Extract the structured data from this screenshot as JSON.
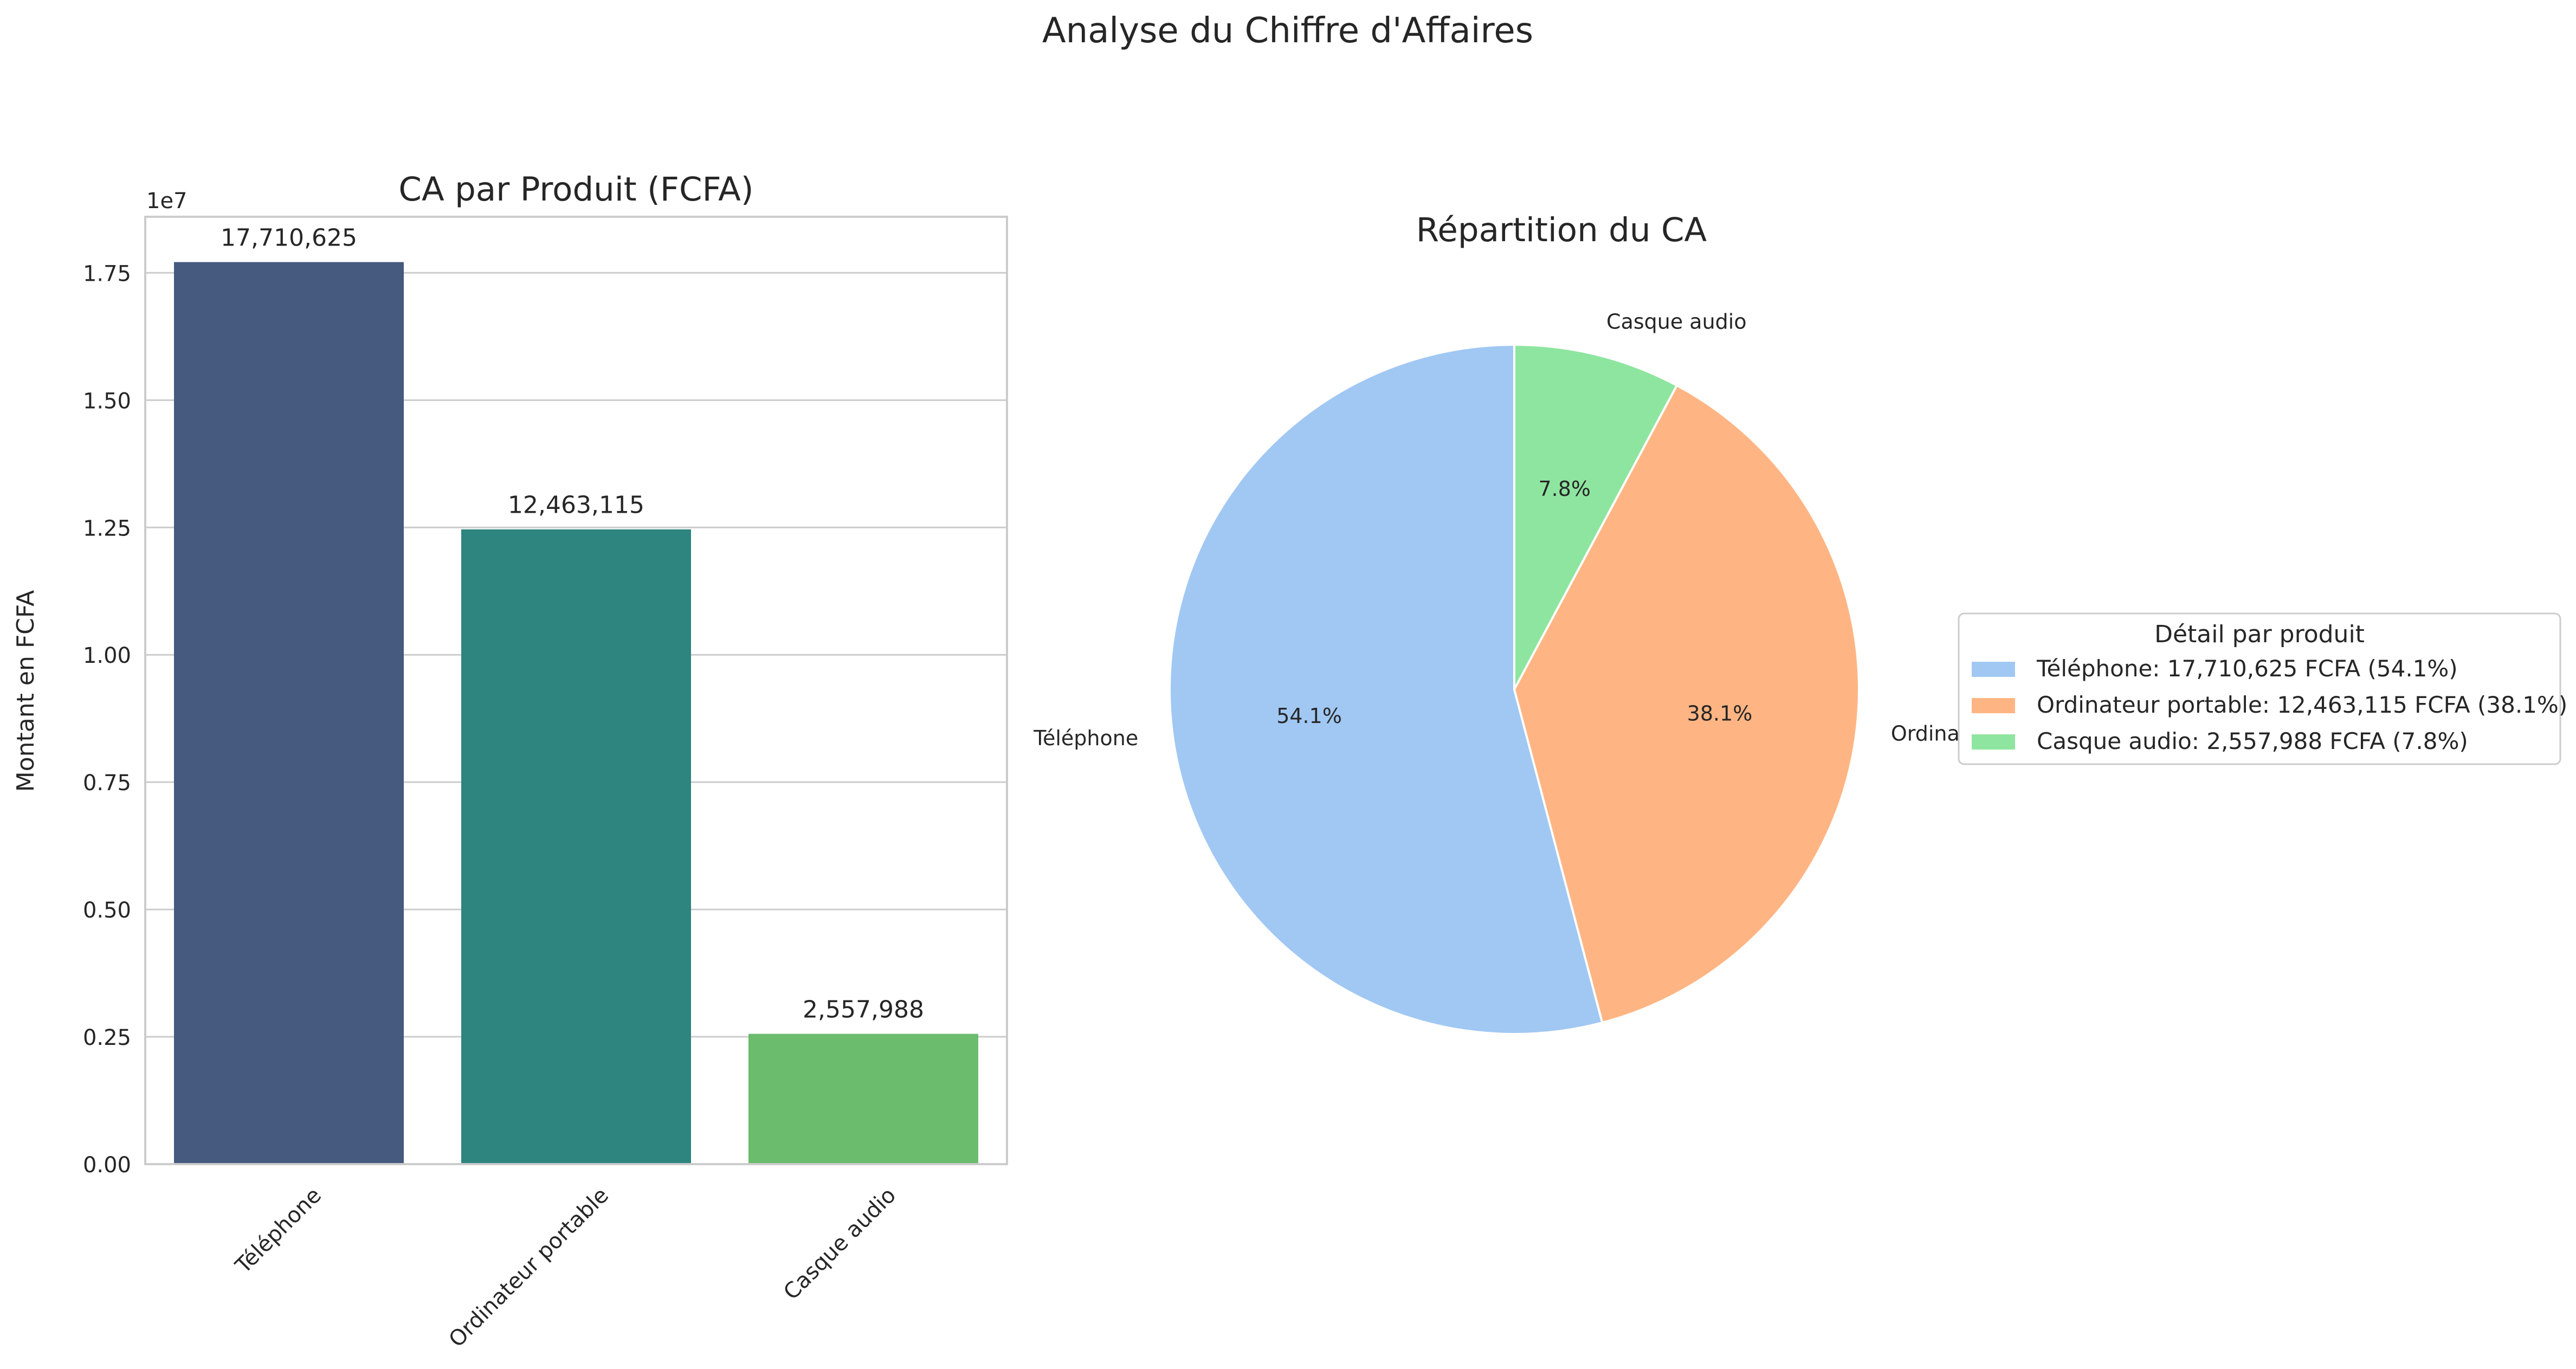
{
  "figure": {
    "suptitle": "Analyse du Chiffre d'Affaires"
  },
  "chart_data": [
    {
      "type": "bar",
      "title": "CA par Produit (FCFA)",
      "xlabel": "",
      "ylabel": "Montant en FCFA",
      "offset_label": "1e7",
      "categories": [
        "Téléphone",
        "Ordinateur portable",
        "Casque audio"
      ],
      "values": [
        17710625,
        12463115,
        2557988
      ],
      "data_labels": [
        "17,710,625",
        "12,463,115",
        "2,557,988"
      ],
      "colors": [
        "#46597f",
        "#2e847e",
        "#6bbc6c"
      ],
      "ylim": [
        0,
        18600000
      ],
      "yticks": [
        0,
        2500000,
        5000000,
        7500000,
        10000000,
        12500000,
        15000000,
        17500000
      ],
      "ytick_labels": [
        "0.00",
        "0.25",
        "0.50",
        "0.75",
        "1.00",
        "1.25",
        "1.50",
        "1.75"
      ],
      "grid": "horizontal"
    },
    {
      "type": "pie",
      "title": "Répartition du CA",
      "labels": [
        "Téléphone",
        "Ordinateur portable",
        "Casque audio"
      ],
      "values": [
        17710625,
        12463115,
        2557988
      ],
      "percent_labels": [
        "54.1%",
        "38.1%",
        "7.8%"
      ],
      "colors": [
        "#a1c8f3",
        "#ffb583",
        "#8ee5a0"
      ],
      "start_angle_deg": 90,
      "direction": "counterclockwise",
      "legend": {
        "title": "Détail par produit",
        "placement": "right",
        "entries": [
          "Téléphone: 17,710,625 FCFA (54.1%)",
          "Ordinateur portable: 12,463,115 FCFA (38.1%)",
          "Casque audio: 2,557,988 FCFA (7.8%)"
        ]
      }
    }
  ]
}
